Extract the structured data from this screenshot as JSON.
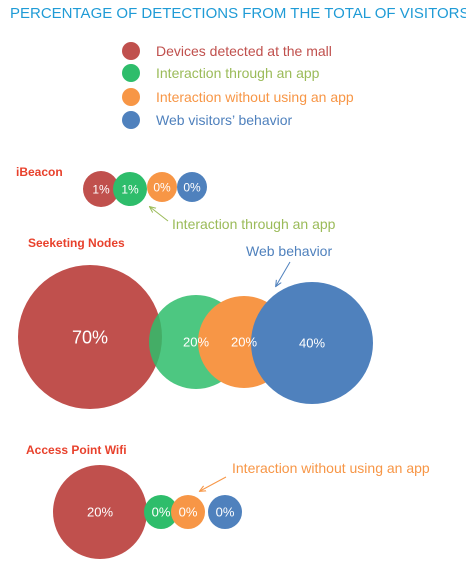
{
  "chart_data": {
    "type": "bubble",
    "title": "PERCENTAGE OF DETECTIONS FROM THE TOTAL OF VISITORS",
    "legend_placement": "top",
    "series": [
      {
        "name": "Devices detected at the mall",
        "color": "#c0504d"
      },
      {
        "name": "Interaction through an app",
        "color": "#2ebd6b"
      },
      {
        "name": "Interaction without using an app",
        "color": "#f79646"
      },
      {
        "name": "Web visitors’ behavior",
        "color": "#4f81bd"
      }
    ],
    "legend_text_colors": [
      "#c0504d",
      "#9bbb59",
      "#f79646",
      "#4f81bd"
    ],
    "groups": [
      {
        "name": "iBeacon",
        "values": [
          1,
          1,
          0,
          0
        ],
        "labels": [
          "1%",
          "1%",
          "0%",
          "0%"
        ]
      },
      {
        "name": "Seeketing Nodes",
        "values": [
          70,
          20,
          20,
          40
        ],
        "labels": [
          "70%",
          "20%",
          "20%",
          "40%"
        ]
      },
      {
        "name": "Access Point Wifi",
        "values": [
          20,
          0,
          0,
          0
        ],
        "labels": [
          "20%",
          "0%",
          "0%",
          "0%"
        ]
      }
    ],
    "annotations": [
      {
        "text": "Interaction through an app",
        "color": "#9bbb59"
      },
      {
        "text": "Web behavior",
        "color": "#4f81bd"
      },
      {
        "text": "Interaction without using an app",
        "color": "#f79646"
      }
    ]
  },
  "colors": {
    "title": "#1f9bd6",
    "group_title": "#e8412c"
  }
}
